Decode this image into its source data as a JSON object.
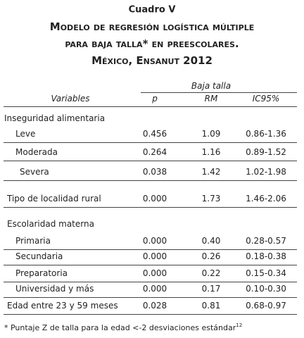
{
  "header": {
    "label": "Cuadro V",
    "title_lines": [
      "Modelo de regresión logística múltiple",
      "para baja talla* en preescolares.",
      "México, Ensanut 2012"
    ]
  },
  "table": {
    "group_header": "Baja talla",
    "columns": [
      "Variables",
      "p",
      "RM",
      "IC95%"
    ],
    "rows": [
      [
        "Inseguridad alimentaria"
      ],
      [
        "Leve",
        "0.456",
        "1.09",
        "0.86-1.36"
      ],
      [
        "Moderada",
        "0.264",
        "1.16",
        "0.89-1.52"
      ],
      [
        "Severa",
        "0.038",
        "1.42",
        "1.02-1.98"
      ],
      [
        "Tipo de localidad rural",
        "0.000",
        "1.73",
        "1.46-2.06"
      ],
      [
        "Escolaridad materna"
      ],
      [
        "Primaria",
        "0.000",
        "0.40",
        "0.28-0.57"
      ],
      [
        "Secundaria",
        "0.000",
        "0.26",
        "0.18-0.38"
      ],
      [
        "Preparatoria",
        "0.000",
        "0.22",
        "0.15-0.34"
      ],
      [
        "Universidad y más",
        "0.000",
        "0.17",
        "0.10-0.30"
      ],
      [
        "Edad entre 23 y 59 meses",
        "0.028",
        "0.81",
        "0.68-0.97"
      ]
    ]
  },
  "footnote": {
    "text": "* Puntaje Z de talla para la edad <-2 desviaciones estándar",
    "reference": "12"
  }
}
